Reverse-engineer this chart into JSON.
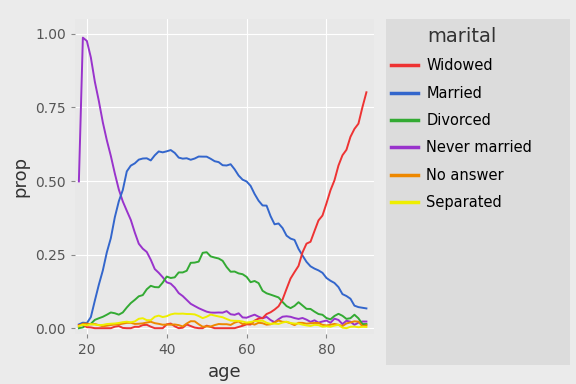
{
  "title": "marital",
  "xlabel": "age",
  "ylabel": "prop",
  "xlim": [
    17,
    92
  ],
  "ylim": [
    -0.02,
    1.05
  ],
  "xticks": [
    20,
    40,
    60,
    80
  ],
  "yticks": [
    0.0,
    0.25,
    0.5,
    0.75,
    1.0
  ],
  "background_color": "#EBEBEB",
  "plot_background": "#E8E8E8",
  "legend_background": "#DCDCDC",
  "grid_color": "#FFFFFF",
  "categories": [
    "Widowed",
    "Married",
    "Divorced",
    "Never married",
    "No answer",
    "Separated"
  ],
  "colors": {
    "Widowed": "#EE3333",
    "Married": "#3366CC",
    "Divorced": "#33AA33",
    "Never married": "#9933CC",
    "No answer": "#EE8800",
    "Separated": "#EEEE00"
  },
  "line_width": 1.4,
  "noise_seed": 42,
  "noise_seed2": 10
}
